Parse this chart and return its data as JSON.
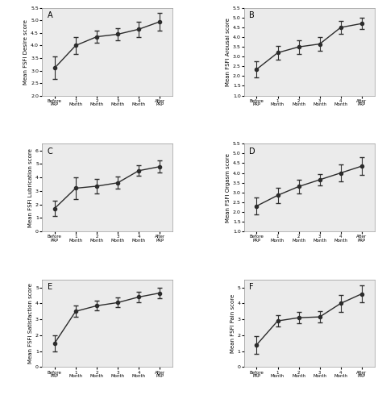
{
  "x_labels": [
    "Before\nPRP",
    "1\nMonth",
    "2\nMonth",
    "3\nMonth",
    "4\nMonth",
    "After\nPRP"
  ],
  "x_positions": [
    0,
    1,
    2,
    3,
    4,
    5
  ],
  "panels": [
    {
      "label": "A",
      "ylabel": "Mean FSFI Desire score",
      "ylim": [
        2.0,
        5.5
      ],
      "yticks": [
        2.0,
        2.5,
        3.0,
        3.5,
        4.0,
        4.5,
        5.0,
        5.5
      ],
      "means": [
        3.1,
        4.0,
        4.35,
        4.45,
        4.65,
        4.95
      ],
      "errors": [
        0.45,
        0.35,
        0.25,
        0.25,
        0.3,
        0.35
      ]
    },
    {
      "label": "B",
      "ylabel": "Mean FSFI Arousal score",
      "ylim": [
        1.0,
        5.5
      ],
      "yticks": [
        1.0,
        1.5,
        2.0,
        2.5,
        3.0,
        3.5,
        4.0,
        4.5,
        5.0,
        5.5
      ],
      "means": [
        2.35,
        3.2,
        3.5,
        3.65,
        4.5,
        4.7
      ],
      "errors": [
        0.4,
        0.35,
        0.35,
        0.35,
        0.35,
        0.3
      ]
    },
    {
      "label": "C",
      "ylabel": "Mean FSFI Lubrication score",
      "ylim": [
        0.0,
        6.5
      ],
      "yticks": [
        0.0,
        1.0,
        2.0,
        3.0,
        4.0,
        5.0,
        6.0
      ],
      "means": [
        1.7,
        3.2,
        3.35,
        3.6,
        4.5,
        4.8
      ],
      "errors": [
        0.55,
        0.8,
        0.55,
        0.45,
        0.4,
        0.45
      ]
    },
    {
      "label": "D",
      "ylabel": "Mean FSFI Orgasm score",
      "ylim": [
        1.0,
        5.5
      ],
      "yticks": [
        1.0,
        1.5,
        2.0,
        2.5,
        3.0,
        3.5,
        4.0,
        4.5,
        5.0,
        5.5
      ],
      "means": [
        2.3,
        2.85,
        3.3,
        3.65,
        4.0,
        4.35
      ],
      "errors": [
        0.45,
        0.4,
        0.35,
        0.3,
        0.45,
        0.45
      ]
    },
    {
      "label": "E",
      "ylabel": "Mean FSFI Satisfaction score",
      "ylim": [
        0.0,
        5.5
      ],
      "yticks": [
        0.0,
        1.0,
        2.0,
        3.0,
        4.0,
        5.0
      ],
      "means": [
        1.5,
        3.5,
        3.85,
        4.05,
        4.4,
        4.65
      ],
      "errors": [
        0.5,
        0.35,
        0.3,
        0.3,
        0.35,
        0.35
      ]
    },
    {
      "label": "F",
      "ylabel": "Mean FSFI Pain score",
      "ylim": [
        0.0,
        5.5
      ],
      "yticks": [
        0.0,
        1.0,
        2.0,
        3.0,
        4.0,
        5.0
      ],
      "means": [
        1.4,
        2.9,
        3.1,
        3.15,
        4.0,
        4.6
      ],
      "errors": [
        0.55,
        0.35,
        0.35,
        0.35,
        0.55,
        0.55
      ]
    }
  ],
  "line_color": "#2c2c2c",
  "marker": "o",
  "marker_size": 3.0,
  "line_width": 1.0,
  "cap_size": 2.5,
  "error_linewidth": 0.8,
  "bg_color": "#ebebeb",
  "tick_labelsize": 4.5,
  "ylabel_fontsize": 5.0,
  "label_fontsize": 7,
  "xlabel_labelsize": 4.0
}
